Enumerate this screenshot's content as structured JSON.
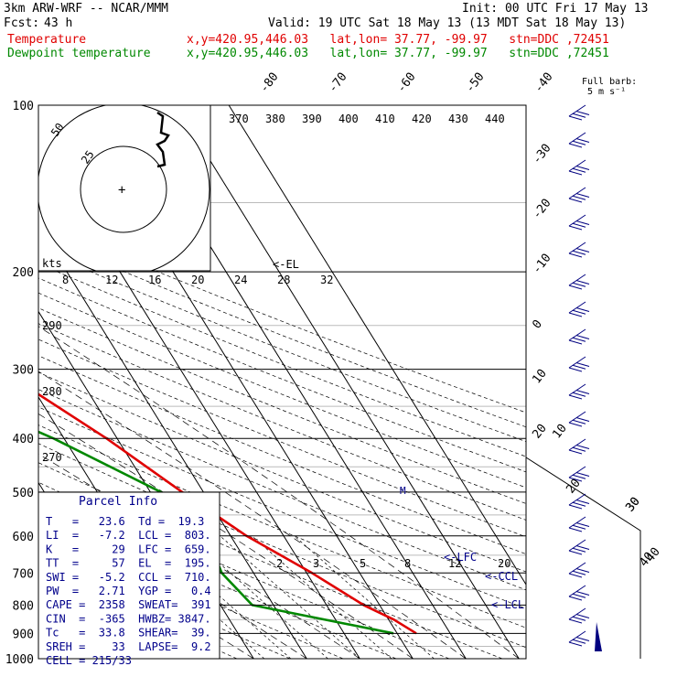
{
  "header": {
    "model": "3km ARW-WRF -- NCAR/MMM",
    "init": "Init: 00 UTC Fri 17 May 13",
    "fcst_label": "Fcst:",
    "fcst_value": "43 h",
    "valid": "Valid: 19 UTC Sat 18 May 13 (13 MDT Sat 18 May 13)",
    "legend": [
      {
        "name": "Temperature",
        "info": "x,y=420.95,446.03   lat,lon= 37.77, -99.97   stn=DDC ,72451",
        "color": "#e00000"
      },
      {
        "name": "Dewpoint temperature",
        "info": "x,y=420.95,446.03   lat,lon= 37.77, -99.97   stn=DDC ,72451",
        "color": "#008800"
      }
    ]
  },
  "chart_data": {
    "type": "line",
    "title": "Skew-T log-P sounding",
    "ylabel": "Pressure (hPa)",
    "pressure_ticks": [
      100,
      200,
      300,
      400,
      500,
      600,
      700,
      800,
      900,
      1000
    ],
    "isotherm_labels": [
      "-80",
      "-70",
      "-60",
      "-50",
      "-40",
      "-30",
      "-20",
      "-10",
      "0",
      "10",
      "20",
      "30",
      "40"
    ],
    "theta_labels": [
      "370",
      "380",
      "390",
      "400",
      "410",
      "420",
      "430",
      "440"
    ],
    "theta_left_labels": [
      "290",
      "280",
      "270"
    ],
    "mixing_ratio_labels": [
      "2",
      "3",
      "5",
      "8",
      "12",
      "20"
    ],
    "el_label": "<-EL",
    "lfc_label": "<-LFC",
    "ccl_label": "<-CCL",
    "lcl_label": "<-LCL",
    "barb_title": "Full barb:",
    "barb_unit": "5 m s⁻¹",
    "hodograph": {
      "units": "kts",
      "ring_labels": [
        "25",
        "50"
      ],
      "speed_labels": [
        "8",
        "12",
        "16",
        "20",
        "24",
        "28",
        "32"
      ]
    },
    "series": [
      {
        "name": "Temperature",
        "color": "#e00000",
        "points": [
          [
            100,
            -62
          ],
          [
            150,
            -56
          ],
          [
            200,
            -46
          ],
          [
            250,
            -34
          ],
          [
            300,
            -24
          ],
          [
            400,
            -12
          ],
          [
            500,
            -4
          ],
          [
            600,
            3
          ],
          [
            700,
            11
          ],
          [
            800,
            17
          ],
          [
            850,
            21
          ],
          [
            900,
            23.6
          ]
        ]
      },
      {
        "name": "Dewpoint temperature",
        "color": "#008800",
        "points": [
          [
            100,
            -87
          ],
          [
            150,
            -84
          ],
          [
            200,
            -82
          ],
          [
            250,
            -67
          ],
          [
            300,
            -44
          ],
          [
            400,
            -22
          ],
          [
            500,
            -8
          ],
          [
            560,
            -4
          ],
          [
            600,
            -4.5
          ],
          [
            700,
            -6
          ],
          [
            800,
            -4
          ],
          [
            900,
            19.3
          ]
        ]
      }
    ],
    "moist_adiabat_labels": [
      "10",
      "20",
      "30",
      "40"
    ]
  },
  "parcel": {
    "title": "Parcel Info",
    "rows": [
      "T   =   23.6  Td =  19.3",
      "LI  =   -7.2  LCL =  803.",
      "K   =     29  LFC =  659.",
      "TT  =     57  EL  =  195.",
      "SWI =   -5.2  CCL =  710.",
      "PW  =   2.71  YGP =   0.4",
      "CAPE =  2358  SWEAT=  391",
      "CIN  =  -365  HWBZ= 3847.",
      "Tc   =  33.8  SHEAR=  39.",
      "SREH =    33  LAPSE=  9.2",
      "CELL = 215/33"
    ]
  }
}
